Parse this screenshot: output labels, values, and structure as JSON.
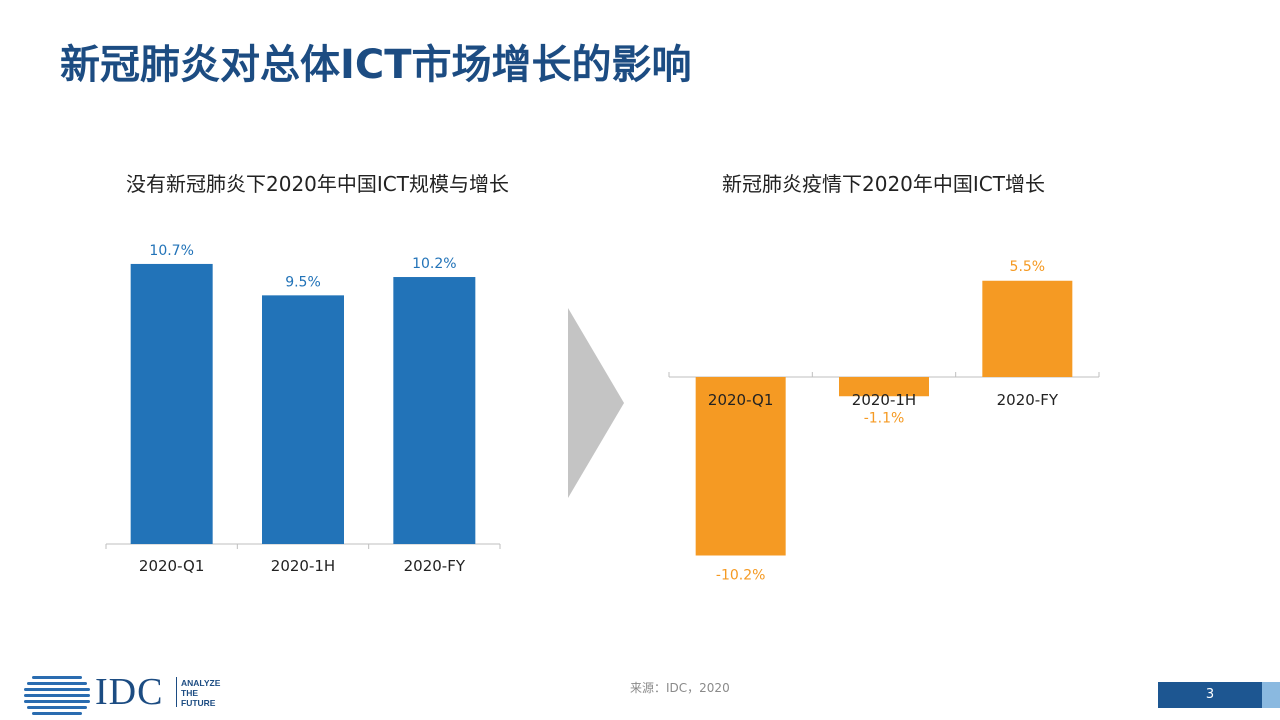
{
  "slide": {
    "title": "新冠肺炎对总体ICT市场增长的影响",
    "source": "来源：IDC，2020",
    "page_number": "3"
  },
  "logo": {
    "text": "IDC",
    "tagline": [
      "ANALYZE",
      "THE",
      "FUTURE"
    ]
  },
  "colors": {
    "title": "#1c4c82",
    "bar_left": "#2273b8",
    "bar_right": "#f59a23",
    "arrow": "#c4c4c4"
  },
  "chart_data": [
    {
      "type": "bar",
      "title": "没有新冠肺炎下2020年中国ICT规模与增长",
      "categories": [
        "2020-Q1",
        "2020-1H",
        "2020-FY"
      ],
      "values": [
        10.7,
        9.5,
        10.2
      ],
      "labels": [
        "10.7%",
        "9.5%",
        "10.2%"
      ],
      "unit": "%",
      "ylim": [
        0,
        11.5
      ],
      "grid": false
    },
    {
      "type": "bar",
      "title": "新冠肺炎疫情下2020年中国ICT增长",
      "categories": [
        "2020-Q1",
        "2020-1H",
        "2020-FY"
      ],
      "values": [
        -10.2,
        -1.1,
        5.5
      ],
      "labels": [
        "-10.2%",
        "-1.1%",
        "5.5%"
      ],
      "unit": "%",
      "ylim": [
        -10.5,
        5.5
      ],
      "grid": false
    }
  ]
}
